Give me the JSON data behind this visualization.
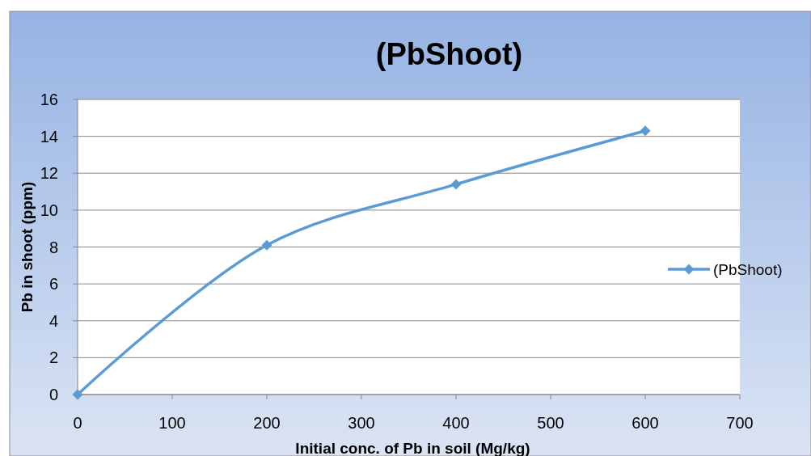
{
  "chart_data": {
    "type": "line",
    "title": "(PbShoot)",
    "xlabel": "Initial conc. of Pb in soil (Mg/kg)",
    "ylabel": "Pb in shoot (ppm)",
    "x": [
      0,
      200,
      400,
      600
    ],
    "series": [
      {
        "name": "(PbShoot)",
        "color": "#5b9bd5",
        "values": [
          0,
          8.1,
          11.4,
          14.3
        ]
      }
    ],
    "xlim": [
      0,
      700
    ],
    "xticks": [
      0,
      100,
      200,
      300,
      400,
      500,
      600,
      700
    ],
    "ylim": [
      0,
      16
    ],
    "yticks": [
      0,
      2,
      4,
      6,
      8,
      10,
      12,
      14,
      16
    ],
    "grid": "y",
    "legend": "right",
    "marker": "diamond",
    "line_style": "solid"
  }
}
